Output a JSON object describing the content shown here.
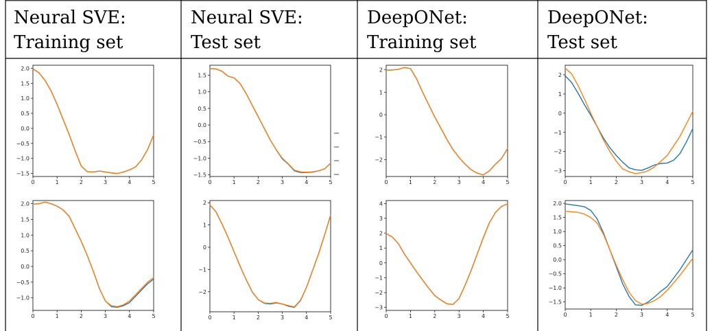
{
  "headers": [
    {
      "line1": "Neural SVE:",
      "line2": "Training set"
    },
    {
      "line1": "Neural SVE:",
      "line2": "Test set"
    },
    {
      "line1": "DeepONet:",
      "line2": "Training set"
    },
    {
      "line1": "DeepONet:",
      "line2": "Test set"
    }
  ],
  "colors": {
    "series_blue": "#1f77b4",
    "series_orange": "#ff7f0e"
  },
  "chart_data": [
    {
      "type": "line",
      "xlim": [
        0,
        5
      ],
      "ylim": [
        -1.6,
        2.1
      ],
      "xticks": [
        "0",
        "1",
        "2",
        "3",
        "4",
        "5"
      ],
      "xtick_values": [
        0,
        1,
        2,
        3,
        4,
        5
      ],
      "yticks": [
        "2.0",
        "1.5",
        "1.0",
        "0.5",
        "0.0",
        "−0.5",
        "−1.0",
        "−1.5"
      ],
      "ytick_values": [
        2.0,
        1.5,
        1.0,
        0.5,
        0.0,
        -0.5,
        -1.0,
        -1.5
      ],
      "x": [
        0,
        0.25,
        0.5,
        0.75,
        1,
        1.25,
        1.5,
        1.75,
        2,
        2.25,
        2.5,
        2.75,
        3,
        3.25,
        3.5,
        3.75,
        4,
        4.25,
        4.5,
        4.75,
        5
      ],
      "series": [
        {
          "color": "#1f77b4",
          "values": [
            1.98,
            1.85,
            1.6,
            1.25,
            0.8,
            0.3,
            -0.2,
            -0.75,
            -1.25,
            -1.44,
            -1.45,
            -1.42,
            -1.45,
            -1.48,
            -1.5,
            -1.45,
            -1.38,
            -1.28,
            -1.05,
            -0.7,
            -0.22
          ]
        },
        {
          "color": "#ff7f0e",
          "values": [
            1.98,
            1.85,
            1.6,
            1.25,
            0.8,
            0.3,
            -0.2,
            -0.75,
            -1.25,
            -1.44,
            -1.45,
            -1.42,
            -1.45,
            -1.48,
            -1.5,
            -1.45,
            -1.38,
            -1.28,
            -1.05,
            -0.7,
            -0.22
          ]
        }
      ]
    },
    {
      "type": "line",
      "xlim": [
        0,
        5
      ],
      "ylim": [
        -1.55,
        1.8
      ],
      "xticks": [
        "0",
        "1",
        "2",
        "3",
        "4",
        "5"
      ],
      "xtick_values": [
        0,
        1,
        2,
        3,
        4,
        5
      ],
      "yticks": [
        "1.5",
        "1.0",
        "0.5",
        "0.0",
        "−0.5",
        "−1.0",
        "−1.5"
      ],
      "ytick_values": [
        1.5,
        1.0,
        0.5,
        0.0,
        -0.5,
        -1.0,
        -1.5
      ],
      "x": [
        0,
        0.25,
        0.5,
        0.75,
        1,
        1.25,
        1.5,
        1.75,
        2,
        2.25,
        2.5,
        2.75,
        3,
        3.25,
        3.5,
        3.75,
        4,
        4.25,
        4.5,
        4.75,
        5
      ],
      "series": [
        {
          "color": "#1f77b4",
          "values": [
            1.7,
            1.69,
            1.62,
            1.47,
            1.42,
            1.25,
            0.95,
            0.6,
            0.25,
            -0.1,
            -0.45,
            -0.75,
            -1.02,
            -1.18,
            -1.38,
            -1.43,
            -1.43,
            -1.42,
            -1.38,
            -1.32,
            -1.15
          ]
        },
        {
          "color": "#ff7f0e",
          "values": [
            1.7,
            1.69,
            1.62,
            1.47,
            1.42,
            1.25,
            0.95,
            0.6,
            0.25,
            -0.1,
            -0.45,
            -0.75,
            -1.0,
            -1.17,
            -1.36,
            -1.41,
            -1.42,
            -1.41,
            -1.38,
            -1.32,
            -1.15
          ]
        }
      ]
    },
    {
      "type": "line",
      "xlim": [
        0,
        5
      ],
      "ylim": [
        -2.75,
        2.2
      ],
      "xticks": [
        "0",
        "1",
        "2",
        "3",
        "4",
        "5"
      ],
      "xtick_values": [
        0,
        1,
        2,
        3,
        4,
        5
      ],
      "yticks": [
        "2",
        "1",
        "0",
        "−1",
        "−2"
      ],
      "ytick_values": [
        2,
        1,
        0,
        -1,
        -2
      ],
      "x": [
        0,
        0.25,
        0.5,
        0.75,
        1,
        1.25,
        1.5,
        1.75,
        2,
        2.25,
        2.5,
        2.75,
        3,
        3.25,
        3.5,
        3.75,
        4,
        4.25,
        4.5,
        4.75,
        5
      ],
      "series": [
        {
          "color": "#1f77b4",
          "values": [
            1.98,
            1.99,
            2.02,
            2.1,
            2.05,
            1.6,
            1.0,
            0.45,
            -0.1,
            -0.6,
            -1.1,
            -1.55,
            -1.9,
            -2.2,
            -2.45,
            -2.6,
            -2.68,
            -2.5,
            -2.2,
            -1.95,
            -1.5
          ]
        },
        {
          "color": "#ff7f0e",
          "values": [
            1.98,
            1.99,
            2.02,
            2.1,
            2.05,
            1.6,
            1.0,
            0.45,
            -0.1,
            -0.6,
            -1.1,
            -1.55,
            -1.9,
            -2.2,
            -2.45,
            -2.6,
            -2.68,
            -2.5,
            -2.2,
            -1.95,
            -1.5
          ]
        }
      ]
    },
    {
      "type": "line",
      "xlim": [
        0,
        5
      ],
      "ylim": [
        -3.3,
        2.5
      ],
      "xticks": [
        "0",
        "1",
        "2",
        "3",
        "4",
        "5"
      ],
      "xtick_values": [
        0,
        1,
        2,
        3,
        4,
        5
      ],
      "yticks": [
        "2",
        "1",
        "0",
        "−1",
        "−2",
        "−3"
      ],
      "ytick_values": [
        2,
        1,
        0,
        -1,
        -2,
        -3
      ],
      "x": [
        0,
        0.25,
        0.5,
        0.75,
        1,
        1.25,
        1.5,
        1.75,
        2,
        2.25,
        2.5,
        2.75,
        3,
        3.25,
        3.5,
        3.75,
        4,
        4.25,
        4.5,
        4.75,
        5
      ],
      "series": [
        {
          "color": "#1f77b4",
          "values": [
            1.95,
            1.6,
            1.05,
            0.45,
            -0.1,
            -0.7,
            -1.3,
            -1.8,
            -2.2,
            -2.55,
            -2.85,
            -2.95,
            -2.98,
            -2.85,
            -2.7,
            -2.62,
            -2.6,
            -2.45,
            -2.1,
            -1.5,
            -0.8
          ]
        },
        {
          "color": "#ff7f0e",
          "values": [
            2.35,
            2.05,
            1.45,
            0.75,
            0.0,
            -0.7,
            -1.4,
            -2.0,
            -2.5,
            -2.9,
            -3.05,
            -3.15,
            -3.1,
            -3.0,
            -2.8,
            -2.5,
            -2.2,
            -1.7,
            -1.2,
            -0.55,
            0.1
          ]
        }
      ]
    },
    {
      "type": "line",
      "xlim": [
        0,
        5
      ],
      "ylim": [
        -1.4,
        2.1
      ],
      "xticks": [
        "0",
        "1",
        "2",
        "3",
        "4",
        "5"
      ],
      "xtick_values": [
        0,
        1,
        2,
        3,
        4,
        5
      ],
      "yticks": [
        "2.0",
        "1.5",
        "1.0",
        "0.5",
        "0.0",
        "−0.5",
        "−1.0"
      ],
      "ytick_values": [
        2.0,
        1.5,
        1.0,
        0.5,
        0.0,
        -0.5,
        -1.0
      ],
      "x": [
        0,
        0.25,
        0.5,
        0.75,
        1,
        1.25,
        1.5,
        1.75,
        2,
        2.25,
        2.5,
        2.75,
        3,
        3.25,
        3.5,
        3.75,
        4,
        4.25,
        4.5,
        4.75,
        5
      ],
      "series": [
        {
          "color": "#1f77b4",
          "values": [
            1.98,
            2.0,
            2.05,
            2.0,
            1.92,
            1.8,
            1.6,
            1.2,
            0.8,
            0.35,
            -0.15,
            -0.7,
            -1.1,
            -1.28,
            -1.3,
            -1.25,
            -1.15,
            -0.95,
            -0.75,
            -0.55,
            -0.4
          ]
        },
        {
          "color": "#ff7f0e",
          "values": [
            1.98,
            2.0,
            2.05,
            2.0,
            1.92,
            1.8,
            1.6,
            1.2,
            0.8,
            0.35,
            -0.15,
            -0.7,
            -1.1,
            -1.25,
            -1.28,
            -1.22,
            -1.1,
            -0.9,
            -0.7,
            -0.5,
            -0.35
          ]
        }
      ]
    },
    {
      "type": "line",
      "xlim": [
        0,
        5
      ],
      "ylim": [
        -2.9,
        2.1
      ],
      "xticks": [
        "0",
        "1",
        "2",
        "3",
        "4",
        "5"
      ],
      "xtick_values": [
        0,
        1,
        2,
        3,
        4,
        5
      ],
      "yticks": [
        "2",
        "1",
        "0",
        "−1",
        "−2"
      ],
      "ytick_values": [
        2,
        1,
        0,
        -1,
        -2
      ],
      "x": [
        0,
        0.25,
        0.5,
        0.75,
        1,
        1.25,
        1.5,
        1.75,
        2,
        2.25,
        2.5,
        2.75,
        3,
        3.25,
        3.5,
        3.75,
        4,
        4.25,
        4.5,
        4.75,
        5
      ],
      "series": [
        {
          "color": "#1f77b4",
          "values": [
            1.9,
            1.6,
            1.05,
            0.45,
            -0.2,
            -0.85,
            -1.45,
            -2.0,
            -2.35,
            -2.52,
            -2.55,
            -2.5,
            -2.55,
            -2.65,
            -2.7,
            -2.4,
            -1.8,
            -1.05,
            -0.3,
            0.55,
            1.45
          ]
        },
        {
          "color": "#ff7f0e",
          "values": [
            1.9,
            1.6,
            1.05,
            0.45,
            -0.2,
            -0.85,
            -1.45,
            -2.0,
            -2.35,
            -2.5,
            -2.52,
            -2.48,
            -2.55,
            -2.62,
            -2.68,
            -2.38,
            -1.8,
            -1.05,
            -0.3,
            0.55,
            1.45
          ]
        }
      ]
    },
    {
      "type": "line",
      "xlim": [
        0,
        5
      ],
      "ylim": [
        -3.2,
        4.2
      ],
      "xticks": [
        "0",
        "1",
        "2",
        "3",
        "4",
        "5"
      ],
      "xtick_values": [
        0,
        1,
        2,
        3,
        4,
        5
      ],
      "yticks": [
        "4",
        "3",
        "2",
        "1",
        "0",
        "−1",
        "−2",
        "−3"
      ],
      "ytick_values": [
        4,
        3,
        2,
        1,
        0,
        -1,
        -2,
        -3
      ],
      "x": [
        0,
        0.25,
        0.5,
        0.75,
        1,
        1.25,
        1.5,
        1.75,
        2,
        2.25,
        2.5,
        2.75,
        3,
        3.25,
        3.5,
        3.75,
        4,
        4.25,
        4.5,
        4.75,
        5
      ],
      "series": [
        {
          "color": "#1f77b4",
          "values": [
            1.98,
            1.75,
            1.3,
            0.6,
            0.0,
            -0.6,
            -1.15,
            -1.7,
            -2.2,
            -2.5,
            -2.75,
            -2.8,
            -2.4,
            -1.5,
            -0.5,
            0.6,
            1.7,
            2.7,
            3.4,
            3.8,
            3.98
          ]
        },
        {
          "color": "#ff7f0e",
          "values": [
            1.98,
            1.75,
            1.3,
            0.6,
            0.0,
            -0.6,
            -1.15,
            -1.7,
            -2.2,
            -2.5,
            -2.75,
            -2.8,
            -2.4,
            -1.5,
            -0.5,
            0.6,
            1.7,
            2.7,
            3.4,
            3.8,
            3.98
          ]
        }
      ]
    },
    {
      "type": "line",
      "xlim": [
        0,
        5
      ],
      "ylim": [
        -1.75,
        2.1
      ],
      "xticks": [
        "0",
        "1",
        "2",
        "3",
        "4",
        "5"
      ],
      "xtick_values": [
        0,
        1,
        2,
        3,
        4,
        5
      ],
      "yticks": [
        "2.0",
        "1.5",
        "1.0",
        "0.5",
        "0.0",
        "−0.5",
        "−1.0",
        "−1.5"
      ],
      "ytick_values": [
        2.0,
        1.5,
        1.0,
        0.5,
        0.0,
        -0.5,
        -1.0,
        -1.5
      ],
      "x": [
        0,
        0.25,
        0.5,
        0.75,
        1,
        1.25,
        1.5,
        1.75,
        2,
        2.25,
        2.5,
        2.75,
        3,
        3.25,
        3.5,
        3.75,
        4,
        4.25,
        4.5,
        4.75,
        5
      ],
      "series": [
        {
          "color": "#1f77b4",
          "values": [
            1.98,
            1.95,
            1.92,
            1.88,
            1.75,
            1.45,
            0.95,
            0.35,
            -0.25,
            -0.85,
            -1.3,
            -1.6,
            -1.62,
            -1.5,
            -1.32,
            -1.12,
            -0.95,
            -0.65,
            -0.35,
            0.0,
            0.35
          ]
        },
        {
          "color": "#ff7f0e",
          "values": [
            1.72,
            1.7,
            1.68,
            1.62,
            1.5,
            1.3,
            0.9,
            0.35,
            -0.2,
            -0.7,
            -1.15,
            -1.45,
            -1.58,
            -1.55,
            -1.45,
            -1.3,
            -1.08,
            -0.82,
            -0.55,
            -0.25,
            0.05
          ]
        }
      ]
    }
  ]
}
